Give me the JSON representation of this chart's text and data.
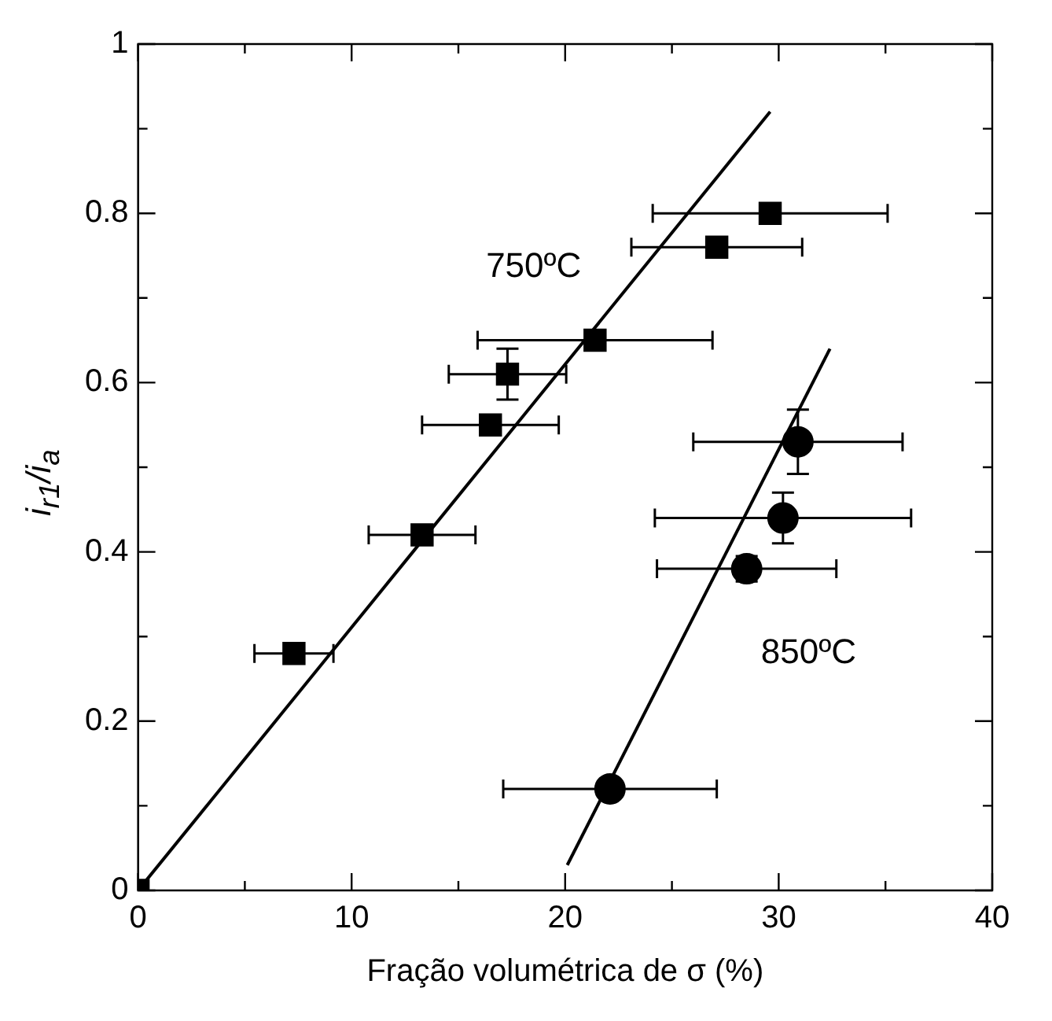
{
  "chart_data": {
    "type": "scatter",
    "xlabel": "Fração volumétrica de σ (%)",
    "ylabel": "i$_{r1}$/i$_{a}$",
    "xlim": [
      0,
      40
    ],
    "xticks": [
      0,
      {
        "value": 5,
        "label": null
      },
      10,
      {
        "value": 15,
        "label": null
      },
      20,
      {
        "value": 25,
        "label": null
      },
      30,
      {
        "value": 35,
        "label": null
      },
      40
    ],
    "ylim": [
      0,
      1
    ],
    "yticks": [
      0,
      {
        "value": 0.1,
        "label": null
      },
      0.2,
      {
        "value": 0.3,
        "label": null
      },
      0.4,
      {
        "value": 0.5,
        "label": null
      },
      0.6,
      {
        "value": 0.7,
        "label": null
      },
      0.8,
      {
        "value": 0.9,
        "label": null
      },
      1
    ],
    "series": [
      {
        "type": "line",
        "name": "750ºC",
        "color": "#000000",
        "marker": "none",
        "x": [
          0,
          29.6
        ],
        "values": [
          0,
          0.92
        ]
      },
      {
        "type": "line",
        "name": "850ºC",
        "color": "#000000",
        "marker": "none",
        "x": [
          20.1,
          32.4
        ],
        "values": [
          0.03,
          0.64
        ]
      },
      {
        "color": "#000000",
        "marker": "square",
        "x": [
          0,
          7.3,
          13.3,
          16.5,
          17.3,
          21.4,
          27.1,
          29.6
        ],
        "values": [
          0,
          0.28,
          0.42,
          0.55,
          0.61,
          0.65,
          0.76,
          0.8
        ],
        "xerrors": [
          null,
          1.85,
          2.5,
          3.2,
          2.75,
          5.5,
          4,
          5.5
        ],
        "errors": [
          null,
          null,
          null,
          null,
          0.03,
          null,
          null,
          null
        ]
      },
      {
        "color": "#000000",
        "marker": "circle",
        "x": [
          22.1,
          28.5,
          30.2,
          30.9
        ],
        "values": [
          0.12,
          0.38,
          0.44,
          0.53
        ],
        "xerrors": [
          5,
          4.2,
          6,
          4.9
        ],
        "errors": [
          null,
          0.015,
          0.03,
          0.038
        ]
      }
    ],
    "grid": false,
    "legend": false
  }
}
